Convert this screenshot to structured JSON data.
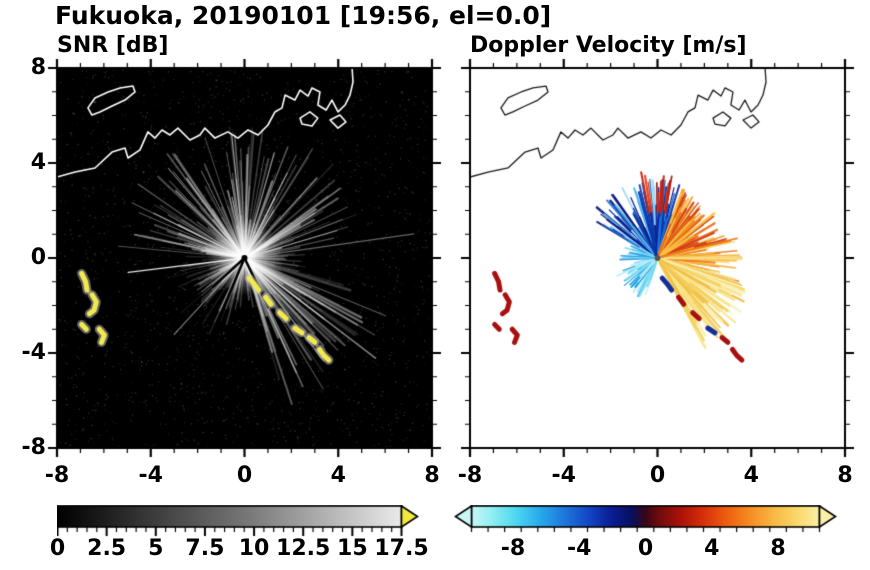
{
  "page": {
    "title": "Fukuoka, 20190101 [19:56, el=0.0]"
  },
  "chart_data": [
    {
      "type": "heatmap",
      "style": "snr",
      "title": "SNR [dB]",
      "xlim": [
        -8,
        8
      ],
      "ylim": [
        -8,
        8
      ],
      "xticks": [
        -8,
        -4,
        0,
        4,
        8
      ],
      "yticks": [
        8,
        4,
        0,
        -4,
        -8
      ],
      "minor_step": 1,
      "grid": false,
      "background": "#000000",
      "radar_center": [
        0,
        0
      ],
      "colorbar": {
        "range": [
          0,
          17.5
        ],
        "ticks": [
          0,
          2.5,
          5,
          7.5,
          10,
          12.5,
          15,
          17.5
        ],
        "minor_step": 0.5,
        "stops": [
          [
            0,
            "#000000"
          ],
          [
            0.55,
            "#777777"
          ],
          [
            1,
            "#eaeaea"
          ]
        ],
        "arrows": {
          "left": null,
          "right": "#f2e93d"
        }
      },
      "features": {
        "noise": {
          "count": 2400,
          "max_alpha": 0.22
        },
        "sectors": [
          {
            "a0": 0,
            "a1": 360,
            "n": 170,
            "len": [
              0.7,
              2.6
            ],
            "w": [
              0.8,
              1.8
            ],
            "alpha": [
              0.08,
              0.3
            ]
          },
          {
            "a0": 10,
            "a1": 175,
            "n": 110,
            "len": [
              1.5,
              5.6
            ],
            "w": [
              0.8,
              2.2
            ],
            "alpha": [
              0.12,
              0.5
            ]
          },
          {
            "a0": 285,
            "a1": 345,
            "n": 60,
            "len": [
              1.8,
              6.6
            ],
            "w": [
              1.0,
              2.6
            ],
            "alpha": [
              0.1,
              0.42
            ]
          },
          {
            "a0": 185,
            "a1": 270,
            "n": 30,
            "len": [
              0.8,
              3.6
            ],
            "w": [
              0.8,
              1.6
            ],
            "alpha": [
              0.08,
              0.26
            ]
          }
        ],
        "rays": [
          {
            "angle": 187,
            "len": 5.0,
            "w": 1.3,
            "alpha": 0.9
          },
          {
            "angle": 96,
            "len": 5.2,
            "w": 1.2,
            "alpha": 0.6
          },
          {
            "angle": 74,
            "len": 4.6,
            "w": 1.3,
            "alpha": 0.55
          },
          {
            "angle": 63,
            "len": 4.0,
            "w": 1.2,
            "alpha": 0.5
          },
          {
            "angle": 8,
            "len": 7.3,
            "w": 1.1,
            "alpha": 0.4
          },
          {
            "angle": -37,
            "len": 7.0,
            "w": 1.6,
            "alpha": 0.5
          },
          {
            "angle": -52,
            "len": 5.5,
            "w": 1.4,
            "alpha": 0.45
          },
          {
            "angle": 227,
            "len": 4.4,
            "w": 1.1,
            "alpha": 0.5
          }
        ],
        "dark_rays": [
          {
            "angle": 247,
            "len": 2.6
          },
          {
            "angle": 222,
            "len": 1.8
          },
          {
            "angle": 296,
            "len": 2.3
          }
        ]
      }
    },
    {
      "type": "heatmap",
      "style": "doppler",
      "title": "Doppler Velocity [m/s]",
      "xlim": [
        -8,
        8
      ],
      "ylim": [
        -8,
        8
      ],
      "xticks": [
        -8,
        -4,
        0,
        4,
        8
      ],
      "yticks": [
        8,
        4,
        0,
        -4,
        -8
      ],
      "minor_step": 1,
      "grid": false,
      "background": "#ffffff",
      "radar_center": [
        0,
        0
      ],
      "colorbar": {
        "range": [
          -10.5,
          10.5
        ],
        "ticks": [
          -8,
          -4,
          0,
          4,
          8
        ],
        "minor_step": 1,
        "stops": [
          [
            0.0,
            "#c9f7f7"
          ],
          [
            0.06,
            "#8feef2"
          ],
          [
            0.13,
            "#4cd6f0"
          ],
          [
            0.2,
            "#28a8ec"
          ],
          [
            0.27,
            "#1e74dc"
          ],
          [
            0.34,
            "#1244c4"
          ],
          [
            0.4,
            "#0a1e96"
          ],
          [
            0.46,
            "#081060"
          ],
          [
            0.5,
            "#38061a"
          ],
          [
            0.54,
            "#700c0c"
          ],
          [
            0.6,
            "#aa1208"
          ],
          [
            0.66,
            "#d42c0a"
          ],
          [
            0.73,
            "#ee5c10"
          ],
          [
            0.8,
            "#f68c22"
          ],
          [
            0.87,
            "#f8ba44"
          ],
          [
            0.94,
            "#fada6e"
          ],
          [
            1.0,
            "#faf0a8"
          ]
        ],
        "arrows": {
          "left": "#c9f7f7",
          "right": "#faf0a8"
        }
      },
      "features": {
        "sectors": [
          {
            "a0": 92,
            "a1": 150,
            "n": 75,
            "len": [
              0.9,
              3.4
            ],
            "w": [
              1.2,
              2.6
            ],
            "colors": [
              "#9ed7f6",
              "#51b5f0",
              "#1d72dc",
              "#0a38b0",
              "#09187e"
            ]
          },
          {
            "a0": 70,
            "a1": 95,
            "n": 32,
            "len": [
              1.2,
              3.3
            ],
            "w": [
              1.2,
              2.4
            ],
            "colors": [
              "#0a38b0",
              "#09187e",
              "#0d2a9c",
              "#1d72dc"
            ]
          },
          {
            "a0": 78,
            "a1": 104,
            "n": 14,
            "r0": 1.9,
            "len": [
              2.5,
              3.7
            ],
            "w": [
              1.2,
              2.2
            ],
            "colors": [
              "#c42210",
              "#a01010",
              "#e03a12"
            ]
          },
          {
            "a0": 14,
            "a1": 70,
            "n": 85,
            "len": [
              0.9,
              3.1
            ],
            "w": [
              1.2,
              2.4
            ],
            "colors": [
              "#f7c34a",
              "#f39a26",
              "#ec6a12",
              "#d43c12"
            ]
          },
          {
            "a0": -16,
            "a1": 14,
            "n": 48,
            "len": [
              1.2,
              3.6
            ],
            "w": [
              1.4,
              2.6
            ],
            "colors": [
              "#f8dc84",
              "#f5b63c",
              "#ee7e1a"
            ]
          },
          {
            "a0": -62,
            "a1": -16,
            "n": 95,
            "len": [
              1.2,
              4.3
            ],
            "w": [
              1.6,
              3.2
            ],
            "colors": [
              "#faf0b2",
              "#f8e489",
              "#f4d264",
              "#f2bf47"
            ]
          },
          {
            "a0": 183,
            "a1": 252,
            "n": 48,
            "len": [
              0.45,
              1.9
            ],
            "w": [
              1.2,
              2.4
            ],
            "colors": [
              "#bceef8",
              "#78dbf3",
              "#38c2ec",
              "#169ae0"
            ]
          },
          {
            "a0": 150,
            "a1": 183,
            "n": 22,
            "len": [
              0.45,
              1.6
            ],
            "w": [
              1.2,
              2.0
            ],
            "colors": [
              "#78dbf3",
              "#2f9ce4"
            ]
          }
        ]
      }
    }
  ],
  "echoes": [
    {
      "pts": [
        [
          -6.95,
          -0.65
        ],
        [
          -6.78,
          -1.0
        ],
        [
          -6.72,
          -1.35
        ]
      ],
      "snr": "#f2ea4c",
      "doppler": "#a81010"
    },
    {
      "pts": [
        [
          -6.5,
          -1.55
        ],
        [
          -6.32,
          -1.85
        ],
        [
          -6.42,
          -2.2
        ],
        [
          -6.62,
          -2.35
        ]
      ],
      "snr": "#f2ea4c",
      "doppler": "#a81010"
    },
    {
      "pts": [
        [
          -6.95,
          -2.8
        ],
        [
          -6.75,
          -3.0
        ]
      ],
      "snr": "#f2ea4c",
      "doppler": "#a81010"
    },
    {
      "pts": [
        [
          -6.2,
          -3.0
        ],
        [
          -5.98,
          -3.25
        ],
        [
          -6.1,
          -3.55
        ]
      ],
      "snr": "#f2ea4c",
      "doppler": "#a81010"
    },
    {
      "pts": [
        [
          0.2,
          -0.85
        ],
        [
          0.42,
          -1.1
        ],
        [
          0.6,
          -1.35
        ]
      ],
      "snr": "#f2ea4c",
      "doppler": "#16309a"
    },
    {
      "pts": [
        [
          0.9,
          -1.65
        ],
        [
          1.12,
          -1.95
        ]
      ],
      "snr": "#f2ea4c",
      "doppler": "#a81010"
    },
    {
      "pts": [
        [
          1.5,
          -2.3
        ],
        [
          1.78,
          -2.55
        ]
      ],
      "snr": "#f2ea4c",
      "doppler": "#a81010"
    },
    {
      "pts": [
        [
          2.15,
          -2.95
        ],
        [
          2.45,
          -3.15
        ]
      ],
      "snr": "#f2ea4c",
      "doppler": "#16309a"
    },
    {
      "pts": [
        [
          2.75,
          -3.35
        ],
        [
          3.0,
          -3.55
        ]
      ],
      "snr": "#f2ea4c",
      "doppler": "#a81010"
    },
    {
      "pts": [
        [
          3.2,
          -3.85
        ],
        [
          3.38,
          -4.1
        ],
        [
          3.6,
          -4.3
        ]
      ],
      "snr": "#f2ea4c",
      "doppler": "#a81010"
    }
  ],
  "coastline": {
    "main": [
      [
        -8.0,
        3.41
      ],
      [
        -7.23,
        3.62
      ],
      [
        -6.38,
        3.79
      ],
      [
        -5.65,
        4.46
      ],
      [
        -5.1,
        4.63
      ],
      [
        -4.97,
        4.21
      ],
      [
        -4.46,
        4.55
      ],
      [
        -4.12,
        5.31
      ],
      [
        -3.82,
        5.05
      ],
      [
        -3.52,
        5.39
      ],
      [
        -3.18,
        5.18
      ],
      [
        -2.84,
        5.47
      ],
      [
        -2.33,
        4.97
      ],
      [
        -1.9,
        5.18
      ],
      [
        -1.69,
        5.47
      ],
      [
        -1.26,
        5.05
      ],
      [
        -0.71,
        5.31
      ],
      [
        -0.28,
        5.05
      ],
      [
        0.15,
        5.39
      ],
      [
        0.58,
        5.18
      ],
      [
        1.0,
        5.6
      ],
      [
        1.3,
        6.15
      ],
      [
        1.6,
        6.32
      ],
      [
        1.73,
        6.86
      ],
      [
        2.15,
        6.65
      ],
      [
        2.37,
        7.07
      ],
      [
        2.71,
        6.82
      ],
      [
        2.88,
        7.16
      ],
      [
        3.22,
        6.99
      ],
      [
        3.13,
        6.44
      ],
      [
        3.48,
        6.23
      ],
      [
        3.73,
        6.65
      ],
      [
        3.99,
        6.15
      ],
      [
        4.29,
        6.44
      ],
      [
        4.5,
        6.86
      ],
      [
        4.63,
        7.41
      ],
      [
        4.59,
        8.0
      ]
    ],
    "island": [
      [
        -6.68,
        6.32
      ],
      [
        -6.38,
        6.74
      ],
      [
        -5.82,
        6.99
      ],
      [
        -5.31,
        7.16
      ],
      [
        -4.76,
        7.24
      ],
      [
        -4.67,
        6.99
      ],
      [
        -5.1,
        6.65
      ],
      [
        -5.65,
        6.4
      ],
      [
        -6.17,
        6.15
      ],
      [
        -6.51,
        6.02
      ]
    ],
    "ports": [
      [
        [
          2.37,
          5.89
        ],
        [
          2.79,
          6.15
        ],
        [
          3.13,
          5.89
        ],
        [
          2.88,
          5.56
        ],
        [
          2.45,
          5.64
        ]
      ],
      [
        [
          3.65,
          5.81
        ],
        [
          4.07,
          6.02
        ],
        [
          4.33,
          5.73
        ],
        [
          3.99,
          5.47
        ]
      ]
    ]
  }
}
